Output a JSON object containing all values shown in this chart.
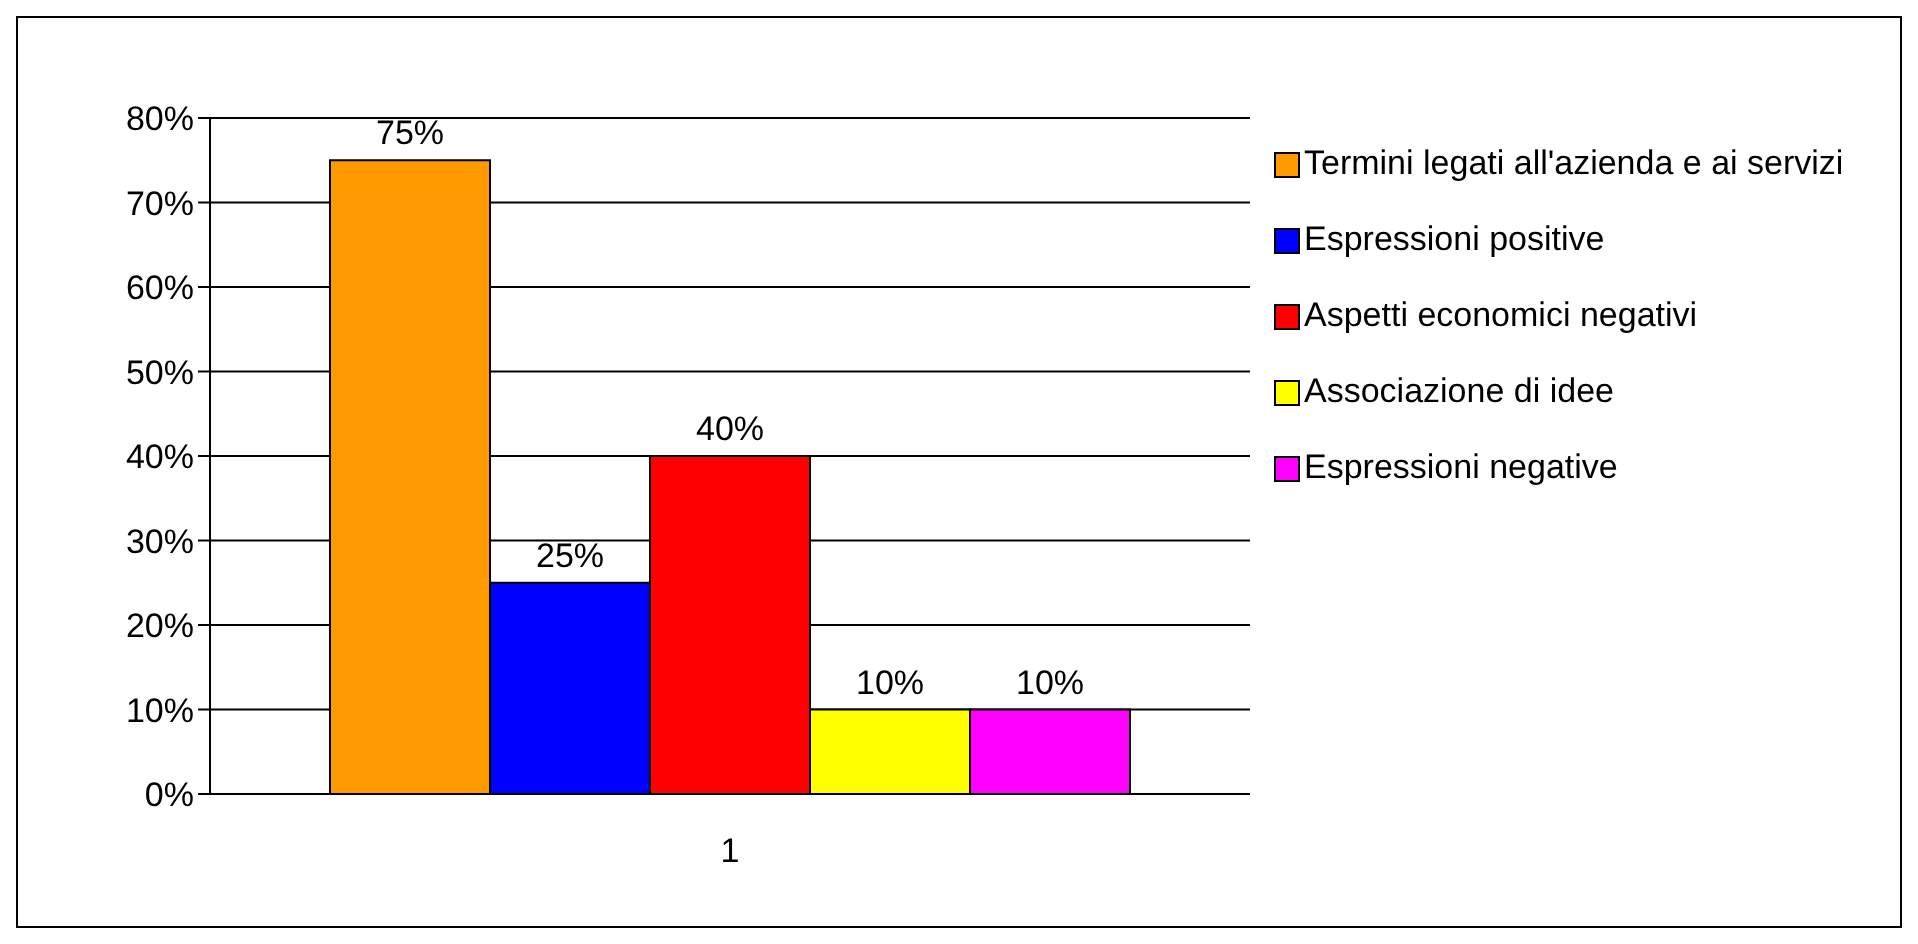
{
  "chart_data": {
    "type": "bar",
    "categories": [
      "1"
    ],
    "series": [
      {
        "name": "Termini legati all'azienda e ai servizi",
        "color": "#ff9900",
        "values": [
          75
        ],
        "value_labels": [
          "75%"
        ]
      },
      {
        "name": "Espressioni positive",
        "color": "#0000ff",
        "values": [
          25
        ],
        "value_labels": [
          "25%"
        ]
      },
      {
        "name": "Aspetti economici negativi",
        "color": "#ff0000",
        "values": [
          40
        ],
        "value_labels": [
          "40%"
        ]
      },
      {
        "name": "Associazione di idee",
        "color": "#ffff00",
        "values": [
          10
        ],
        "value_labels": [
          "10%"
        ]
      },
      {
        "name": "Espressioni negative",
        "color": "#ff00ff",
        "values": [
          10
        ],
        "value_labels": [
          "10%"
        ]
      }
    ],
    "ylim": [
      0,
      80
    ],
    "yticks": [
      {
        "value": 0,
        "label": "0%"
      },
      {
        "value": 10,
        "label": "10%"
      },
      {
        "value": 20,
        "label": "20%"
      },
      {
        "value": 30,
        "label": "30%"
      },
      {
        "value": 40,
        "label": "40%"
      },
      {
        "value": 50,
        "label": "50%"
      },
      {
        "value": 60,
        "label": "60%"
      },
      {
        "value": 70,
        "label": "70%"
      },
      {
        "value": 80,
        "label": "80%"
      }
    ],
    "grid": "y",
    "legend": "right"
  }
}
